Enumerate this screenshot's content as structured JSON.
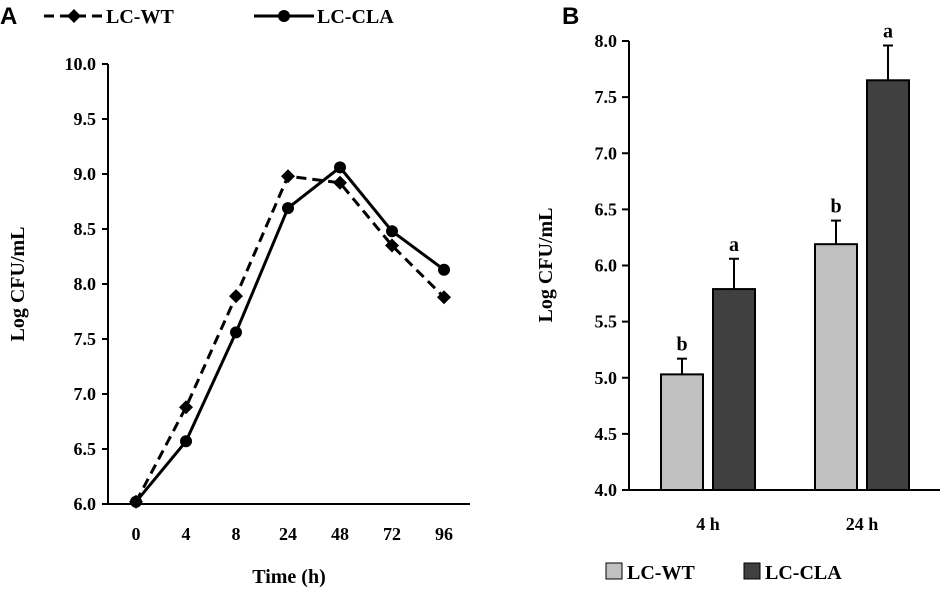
{
  "chart_data": [
    {
      "panel": "A",
      "type": "line",
      "x": [
        "0",
        "4",
        "8",
        "24",
        "48",
        "72",
        "96"
      ],
      "xlabel": "Time (h)",
      "ylabel": "Log CFU/mL",
      "ylim": [
        6.0,
        10.0
      ],
      "yticks": [
        "6.0",
        "6.5",
        "7.0",
        "7.5",
        "8.0",
        "8.5",
        "9.0",
        "9.5",
        "10.0"
      ],
      "legend_placement": "top",
      "series": [
        {
          "name": "LC-WT",
          "style": "dashed",
          "marker": "diamond",
          "values": [
            6.02,
            6.88,
            7.89,
            8.98,
            8.92,
            8.35,
            7.88
          ]
        },
        {
          "name": "LC-CLA",
          "style": "solid",
          "marker": "circle",
          "values": [
            6.02,
            6.57,
            7.56,
            8.69,
            9.06,
            8.48,
            8.13
          ]
        }
      ]
    },
    {
      "panel": "B",
      "type": "bar",
      "categories": [
        "4 h",
        "24 h"
      ],
      "ylabel": "Log CFU/mL",
      "ylim": [
        4.0,
        8.0
      ],
      "yticks": [
        "4.0",
        "4.5",
        "5.0",
        "5.5",
        "6.0",
        "6.5",
        "7.0",
        "7.5",
        "8.0"
      ],
      "legend_placement": "bottom",
      "series": [
        {
          "name": "LC-WT",
          "color": "#c0c0c0",
          "values": [
            5.03,
            6.19
          ],
          "errors": [
            0.14,
            0.21
          ],
          "labels": [
            "b",
            "b"
          ]
        },
        {
          "name": "LC-CLA",
          "color": "#404040",
          "values": [
            5.79,
            7.65
          ],
          "errors": [
            0.27,
            0.31
          ],
          "labels": [
            "a",
            "a"
          ]
        }
      ]
    }
  ]
}
